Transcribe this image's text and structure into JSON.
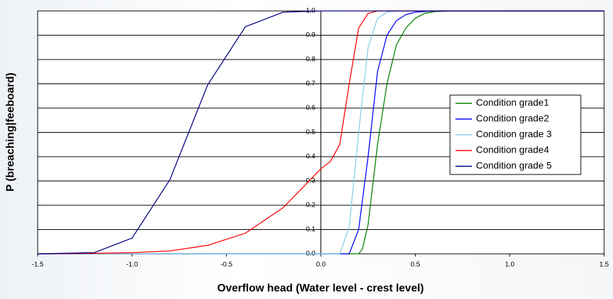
{
  "chart_data": {
    "type": "line",
    "xlabel": "Overflow head (Water level - crest level)",
    "ylabel": "P (breaching|feeboard)",
    "xlim": [
      -1.5,
      1.5
    ],
    "ylim": [
      0,
      1
    ],
    "xticks": [
      {
        "value": -1.5,
        "label": "-1.5"
      },
      {
        "value": -1.0,
        "label": "-1.0"
      },
      {
        "value": -0.5,
        "label": "-0.5"
      },
      {
        "value": 0,
        "label": "0.0"
      },
      0.5,
      {
        "value": 1.0,
        "label": "1.0"
      },
      1.5
    ],
    "yticks": [
      {
        "value": 0,
        "label": "0.0"
      },
      0.1,
      0.2,
      0.3,
      0.4,
      0.5,
      0.6,
      0.7,
      0.8,
      0.9,
      {
        "value": 1,
        "label": "1.0"
      }
    ],
    "grid": true,
    "legend": "right",
    "series": [
      {
        "name": "Condition grade1",
        "color": "#008000",
        "x": [
          -1.5,
          0.2,
          0.22,
          0.25,
          0.3,
          0.35,
          0.4,
          0.45,
          0.5,
          0.55,
          0.6,
          0.7,
          1.5
        ],
        "values": [
          0,
          0,
          0.02,
          0.12,
          0.45,
          0.7,
          0.86,
          0.93,
          0.97,
          0.99,
          0.997,
          1,
          1
        ]
      },
      {
        "name": "Condition grade2",
        "color": "#0000ff",
        "x": [
          -1.5,
          0.15,
          0.2,
          0.25,
          0.3,
          0.35,
          0.4,
          0.45,
          0.5,
          0.6,
          1.5
        ],
        "values": [
          0,
          0,
          0.1,
          0.4,
          0.75,
          0.9,
          0.96,
          0.985,
          0.995,
          1,
          1
        ]
      },
      {
        "name": "Condition grade 3",
        "color": "#87ceeb",
        "x": [
          -1.5,
          0.1,
          0.15,
          0.2,
          0.25,
          0.3,
          0.35,
          0.4,
          1.5
        ],
        "values": [
          0,
          0,
          0.11,
          0.5,
          0.85,
          0.97,
          0.995,
          1,
          1
        ]
      },
      {
        "name": "Condition grade4",
        "color": "#ff0000",
        "x": [
          -1.5,
          -1.2,
          -1.0,
          -0.8,
          -0.6,
          -0.4,
          -0.2,
          -0.1,
          0,
          0.05,
          0.1,
          0.15,
          0.2,
          0.25,
          0.3,
          1.5
        ],
        "values": [
          0,
          0.002,
          0.005,
          0.012,
          0.035,
          0.085,
          0.19,
          0.27,
          0.35,
          0.38,
          0.45,
          0.7,
          0.93,
          0.99,
          1,
          1
        ]
      },
      {
        "name": "Condition grade 5",
        "color": "#000080",
        "x": [
          -1.5,
          -1.2,
          -1.0,
          -0.8,
          -0.6,
          -0.4,
          -0.2,
          0,
          1.5
        ],
        "values": [
          0,
          0.005,
          0.065,
          0.305,
          0.695,
          0.935,
          0.995,
          1,
          1
        ]
      }
    ]
  }
}
